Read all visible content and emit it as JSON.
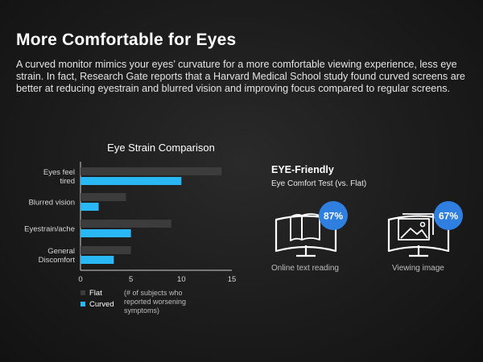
{
  "heading": "More Comfortable for Eyes",
  "description": "A curved monitor mimics your eyes’ curvature for a more comfortable viewing experience, less eye strain. In fact, Research Gate reports that a Harvard Medical School study found curved screens are better at reducing eyestrain and blurred vision and improving focus compared to regular screens.",
  "chart_data": {
    "type": "bar",
    "orientation": "horizontal",
    "title": "Eye Strain Comparison",
    "categories": [
      [
        "Eyes feel",
        "tired"
      ],
      [
        "Blurred vision"
      ],
      [
        "Eyestrain/ache"
      ],
      [
        "General",
        "Discomfort"
      ]
    ],
    "series": [
      {
        "name": "Flat",
        "values": [
          14,
          4.5,
          9,
          5
        ],
        "color": "#3c3c3c"
      },
      {
        "name": "Curved",
        "values": [
          10,
          1.8,
          5,
          3.3
        ],
        "color": "#2ab8f5"
      }
    ],
    "xlim": [
      0,
      15
    ],
    "xticks": [
      0,
      5,
      10,
      15
    ],
    "grid": false,
    "legend_position": "bottom-left",
    "note": [
      "(# of subjects who",
      "reported worsening",
      "symptoms)"
    ]
  },
  "comfort": {
    "title": "EYE-Friendly",
    "subtitle": "Eye Comfort Test (vs. Flat)",
    "items": [
      {
        "icon": "open-book-icon",
        "value": "87%",
        "fraction": 0.87,
        "caption": "Online text reading"
      },
      {
        "icon": "landscape-image-icon",
        "value": "67%",
        "fraction": 0.67,
        "caption": "Viewing image"
      }
    ],
    "badge_color": "#2f7fe0"
  }
}
